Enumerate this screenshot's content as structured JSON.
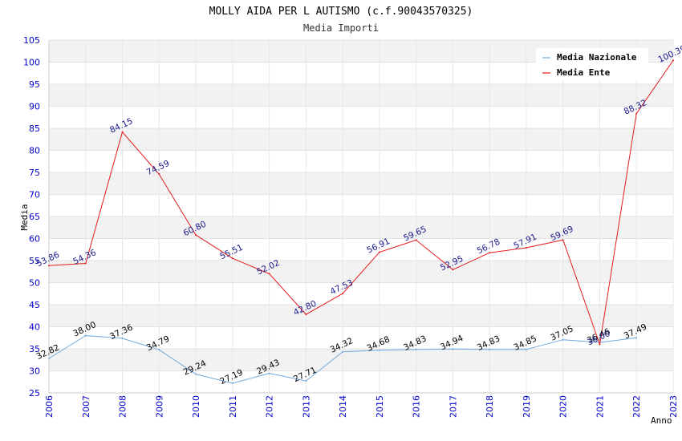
{
  "chart_data": {
    "type": "line",
    "title": "MOLLY AIDA PER L AUTISMO (c.f.90043570325)",
    "subtitle": "Media Importi",
    "xlabel": "Anno",
    "ylabel": "Media",
    "ylim": [
      25,
      105
    ],
    "yticks": [
      "25",
      "30",
      "35",
      "40",
      "45",
      "50",
      "55",
      "60",
      "65",
      "70",
      "75",
      "80",
      "85",
      "90",
      "95",
      "100",
      "105"
    ],
    "x": [
      "2006",
      "2007",
      "2008",
      "2009",
      "2010",
      "2011",
      "2012",
      "2013",
      "2014",
      "2015",
      "2016",
      "2017",
      "2018",
      "2019",
      "2020",
      "2021",
      "2022",
      "2023"
    ],
    "legend_position": "top-right",
    "series": [
      {
        "name": "Media Nazionale",
        "color": "#6fa8dc",
        "values": [
          32.82,
          38.0,
          37.36,
          34.79,
          29.24,
          27.19,
          29.43,
          27.71,
          34.32,
          34.68,
          34.83,
          34.94,
          34.83,
          34.85,
          37.05,
          36.46,
          37.49,
          null
        ],
        "labels": [
          "32.82",
          "38.00",
          "37.36",
          "34.79",
          "29.24",
          "27.19",
          "29.43",
          "27.71",
          "34.32",
          "34.68",
          "34.83",
          "34.94",
          "34.83",
          "34.85",
          "37.05",
          "36.46",
          "37.49",
          null
        ]
      },
      {
        "name": "Media Ente",
        "color": "#e31a1c",
        "values": [
          53.86,
          54.36,
          84.15,
          74.59,
          60.8,
          55.51,
          52.02,
          42.8,
          47.53,
          56.91,
          59.65,
          52.95,
          56.78,
          57.91,
          59.69,
          36.0,
          88.32,
          100.39
        ],
        "labels": [
          "53.86",
          "54.36",
          "84.15",
          "74.59",
          "60.80",
          "55.51",
          "52.02",
          "42.80",
          "47.53",
          "56.91",
          "59.65",
          "52.95",
          "56.78",
          "57.91",
          "59.69",
          "36.00",
          "88.32",
          "100.39"
        ]
      }
    ]
  }
}
